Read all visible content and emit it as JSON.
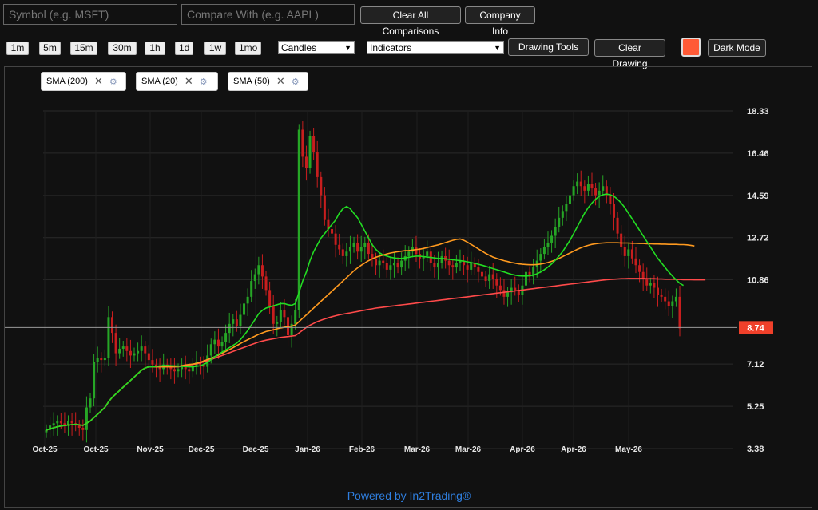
{
  "search": {
    "symbol_placeholder": "Symbol (e.g. MSFT)",
    "compare_placeholder": "Compare With (e.g. AAPL)"
  },
  "toolbar": {
    "clear_comparisons": "Clear All Comparisons",
    "company_info": "Company Info",
    "timeframes": [
      "1m",
      "5m",
      "15m",
      "30m",
      "1h",
      "1d",
      "1w",
      "1mo"
    ],
    "chart_type": "Candles",
    "indicators": "Indicators",
    "drawing_tools": "Drawing Tools",
    "clear_drawing": "Clear Drawing",
    "color_swatch": "#ff5a36",
    "dark_mode": "Dark Mode"
  },
  "indicator_chips": [
    {
      "label": "SMA (200)"
    },
    {
      "label": "SMA (20)"
    },
    {
      "label": "SMA (50)"
    }
  ],
  "footer": "Powered by In2Trading®",
  "chart_data": {
    "type": "candlestick",
    "x_ticks": [
      "Oct-25",
      "Oct-25",
      "Nov-25",
      "Dec-25",
      "Dec-25",
      "Jan-26",
      "Feb-26",
      "Mar-26",
      "Mar-26",
      "Apr-26",
      "Apr-26",
      "May-26"
    ],
    "y_ticks": [
      18.33,
      16.46,
      14.59,
      12.72,
      10.86,
      8.74,
      7.12,
      5.25,
      3.38
    ],
    "ylim": [
      3.38,
      18.33
    ],
    "last_price": 8.74,
    "last_price_label": "8.74",
    "colors": {
      "up": "#26a626",
      "down": "#c81e1e",
      "sma20": "#22dd22",
      "sma50": "#ff9a1f",
      "sma200": "#ff4a4a",
      "price_line": "#9a9a9a",
      "price_tag": "#f0402a"
    },
    "closes": [
      4.2,
      4.4,
      4.5,
      4.6,
      4.5,
      4.4,
      4.6,
      4.5,
      4.4,
      4.3,
      4.2,
      5.2,
      5.6,
      7.2,
      7.4,
      7.3,
      7.4,
      9.2,
      8.5,
      7.6,
      7.8,
      7.9,
      7.7,
      7.5,
      7.6,
      7.7,
      7.9,
      7.6,
      7.3,
      7.1,
      7.0,
      6.9,
      7.1,
      7.0,
      6.9,
      6.8,
      6.9,
      7.0,
      6.9,
      6.8,
      7.0,
      7.2,
      7.1,
      7.0,
      7.5,
      8.0,
      8.2,
      7.9,
      8.1,
      8.5,
      8.9,
      9.1,
      8.8,
      9.3,
      9.8,
      10.1,
      10.8,
      11.1,
      11.5,
      11.0,
      10.4,
      9.7,
      8.9,
      9.0,
      9.5,
      9.2,
      8.4,
      8.9,
      9.5,
      17.5,
      16.3,
      15.8,
      17.2,
      16.5,
      15.4,
      14.6,
      13.5,
      13.1,
      12.9,
      12.4,
      12.2,
      11.9,
      12.1,
      12.3,
      12.5,
      12.1,
      12.3,
      12.5,
      12.0,
      11.8,
      11.5,
      11.7,
      11.6,
      11.3,
      11.5,
      11.6,
      11.4,
      11.7,
      11.9,
      12.1,
      12.3,
      12.0,
      11.8,
      11.9,
      12.1,
      11.6,
      11.4,
      11.6,
      11.9,
      11.7,
      11.5,
      11.4,
      11.6,
      11.7,
      11.5,
      11.3,
      11.6,
      11.4,
      11.2,
      11.0,
      10.8,
      11.1,
      10.9,
      10.6,
      10.4,
      10.1,
      10.3,
      10.5,
      10.4,
      10.2,
      10.6,
      11.2,
      11.0,
      11.4,
      11.7,
      12.0,
      12.3,
      12.5,
      12.8,
      13.2,
      13.6,
      13.9,
      14.2,
      14.6,
      15.0,
      15.2,
      15.0,
      14.8,
      15.1,
      14.9,
      14.6,
      14.8,
      15.0,
      14.6,
      14.2,
      13.6,
      12.9,
      12.3,
      11.9,
      12.2,
      11.8,
      11.5,
      11.2,
      10.9,
      10.6,
      10.7,
      10.5,
      10.2,
      10.1,
      9.9,
      9.7,
      9.9,
      10.1,
      8.7
    ],
    "sma20": [
      4.2,
      4.25,
      4.3,
      4.35,
      4.38,
      4.4,
      4.42,
      4.44,
      4.45,
      4.43,
      4.41,
      4.5,
      4.6,
      4.75,
      4.9,
      5.05,
      5.2,
      5.45,
      5.65,
      5.8,
      5.95,
      6.1,
      6.25,
      6.4,
      6.55,
      6.7,
      6.85,
      6.95,
      7.0,
      7.0,
      7.02,
      7.04,
      7.05,
      7.06,
      7.05,
      7.04,
      7.03,
      7.02,
      7.01,
      7.0,
      7.0,
      7.02,
      7.05,
      7.1,
      7.2,
      7.32,
      7.45,
      7.55,
      7.65,
      7.75,
      7.85,
      7.95,
      8.05,
      8.2,
      8.4,
      8.6,
      8.85,
      9.1,
      9.35,
      9.5,
      9.6,
      9.65,
      9.7,
      9.75,
      9.8,
      9.8,
      9.75,
      9.72,
      9.8,
      10.3,
      10.8,
      11.2,
      11.7,
      12.1,
      12.4,
      12.7,
      12.9,
      13.1,
      13.3,
      13.5,
      13.8,
      14.0,
      14.1,
      14.0,
      13.8,
      13.6,
      13.3,
      13.0,
      12.7,
      12.4,
      12.2,
      12.05,
      11.95,
      11.9,
      11.85,
      11.82,
      11.8,
      11.8,
      11.82,
      11.85,
      11.88,
      11.9,
      11.9,
      11.88,
      11.86,
      11.84,
      11.82,
      11.8,
      11.8,
      11.78,
      11.76,
      11.74,
      11.72,
      11.7,
      11.68,
      11.65,
      11.62,
      11.58,
      11.54,
      11.5,
      11.45,
      11.4,
      11.35,
      11.3,
      11.25,
      11.2,
      11.15,
      11.1,
      11.06,
      11.03,
      11.02,
      11.02,
      11.03,
      11.06,
      11.12,
      11.2,
      11.3,
      11.42,
      11.56,
      11.72,
      11.9,
      12.1,
      12.35,
      12.6,
      12.9,
      13.2,
      13.5,
      13.8,
      14.05,
      14.25,
      14.42,
      14.55,
      14.62,
      14.65,
      14.62,
      14.55,
      14.42,
      14.25,
      14.05,
      13.8,
      13.55,
      13.3,
      13.05,
      12.8,
      12.55,
      12.3,
      12.05,
      11.8,
      11.6,
      11.4,
      11.2,
      11.02,
      10.85,
      10.7,
      10.6
    ],
    "sma50": [
      4.2,
      4.25,
      4.3,
      4.35,
      4.38,
      4.4,
      4.42,
      4.44,
      4.45,
      4.43,
      4.41,
      4.5,
      4.6,
      4.75,
      4.9,
      5.05,
      5.2,
      5.45,
      5.65,
      5.8,
      5.95,
      6.1,
      6.25,
      6.4,
      6.55,
      6.7,
      6.85,
      6.95,
      7.0,
      7.0,
      7.0,
      7.0,
      7.0,
      7.0,
      7.0,
      7.0,
      7.02,
      7.05,
      7.08,
      7.1,
      7.12,
      7.15,
      7.2,
      7.26,
      7.32,
      7.38,
      7.45,
      7.52,
      7.6,
      7.68,
      7.76,
      7.85,
      7.94,
      8.03,
      8.12,
      8.2,
      8.28,
      8.36,
      8.44,
      8.5,
      8.56,
      8.6,
      8.64,
      8.68,
      8.72,
      8.75,
      8.78,
      8.8,
      8.85,
      9.0,
      9.15,
      9.3,
      9.45,
      9.6,
      9.75,
      9.9,
      10.05,
      10.2,
      10.35,
      10.5,
      10.65,
      10.8,
      10.95,
      11.1,
      11.25,
      11.38,
      11.5,
      11.6,
      11.7,
      11.78,
      11.85,
      11.9,
      11.95,
      12.0,
      12.04,
      12.07,
      12.1,
      12.12,
      12.14,
      12.15,
      12.17,
      12.19,
      12.21,
      12.24,
      12.28,
      12.32,
      12.36,
      12.4,
      12.45,
      12.5,
      12.55,
      12.6,
      12.64,
      12.66,
      12.6,
      12.52,
      12.42,
      12.32,
      12.22,
      12.12,
      12.02,
      11.94,
      11.86,
      11.8,
      11.75,
      11.7,
      11.66,
      11.62,
      11.59,
      11.56,
      11.54,
      11.53,
      11.52,
      11.52,
      11.53,
      11.55,
      11.58,
      11.62,
      11.67,
      11.73,
      11.8,
      11.88,
      11.96,
      12.04,
      12.12,
      12.2,
      12.27,
      12.33,
      12.38,
      12.42,
      12.45,
      12.47,
      12.48,
      12.49,
      12.49,
      12.49,
      12.49,
      12.48,
      12.48,
      12.48,
      12.47,
      12.47,
      12.46,
      12.46,
      12.45,
      12.45,
      12.44,
      12.44,
      12.43,
      12.43,
      12.42,
      12.42,
      12.42,
      12.41,
      12.41,
      12.4,
      12.38,
      12.35
    ],
    "sma200": [
      4.2,
      4.25,
      4.3,
      4.35,
      4.38,
      4.4,
      4.42,
      4.44,
      4.45,
      4.43,
      4.41,
      4.5,
      4.6,
      4.75,
      4.9,
      5.05,
      5.2,
      5.45,
      5.65,
      5.8,
      5.95,
      6.1,
      6.25,
      6.4,
      6.55,
      6.7,
      6.85,
      6.95,
      7.0,
      7.0,
      7.0,
      7.0,
      7.0,
      7.0,
      7.0,
      7.0,
      7.0,
      7.02,
      7.05,
      7.08,
      7.1,
      7.13,
      7.17,
      7.22,
      7.27,
      7.32,
      7.38,
      7.44,
      7.5,
      7.56,
      7.62,
      7.68,
      7.74,
      7.8,
      7.86,
      7.92,
      7.98,
      8.04,
      8.1,
      8.14,
      8.18,
      8.21,
      8.24,
      8.27,
      8.3,
      8.32,
      8.34,
      8.36,
      8.38,
      8.5,
      8.62,
      8.74,
      8.84,
      8.92,
      9.0,
      9.06,
      9.12,
      9.17,
      9.22,
      9.26,
      9.3,
      9.33,
      9.36,
      9.39,
      9.42,
      9.45,
      9.48,
      9.51,
      9.54,
      9.57,
      9.6,
      9.62,
      9.64,
      9.66,
      9.68,
      9.7,
      9.72,
      9.74,
      9.76,
      9.78,
      9.8,
      9.82,
      9.84,
      9.86,
      9.88,
      9.9,
      9.92,
      9.94,
      9.96,
      9.98,
      10.0,
      10.02,
      10.04,
      10.06,
      10.08,
      10.1,
      10.12,
      10.14,
      10.16,
      10.18,
      10.2,
      10.22,
      10.24,
      10.26,
      10.28,
      10.3,
      10.32,
      10.34,
      10.36,
      10.38,
      10.4,
      10.42,
      10.44,
      10.46,
      10.48,
      10.5,
      10.52,
      10.54,
      10.56,
      10.58,
      10.6,
      10.62,
      10.64,
      10.66,
      10.68,
      10.7,
      10.72,
      10.74,
      10.76,
      10.78,
      10.8,
      10.82,
      10.84,
      10.86,
      10.87,
      10.88,
      10.89,
      10.9,
      10.9,
      10.91,
      10.91,
      10.91,
      10.91,
      10.91,
      10.9,
      10.9,
      10.9,
      10.89,
      10.89,
      10.88,
      10.88,
      10.88,
      10.87,
      10.87,
      10.86,
      10.86,
      10.86,
      10.85,
      10.85,
      10.85,
      10.85
    ]
  }
}
